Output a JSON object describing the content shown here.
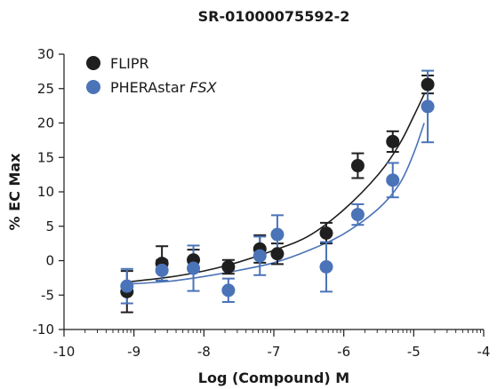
{
  "colors": {
    "flipr": "#1f1f1f",
    "pherastar": "#4a73b8"
  },
  "chart_data": {
    "type": "scatter",
    "title": "SR-01000075592-2",
    "xlabel": "Log (Compound) M",
    "ylabel": "% EC Max",
    "xlim": [
      -10,
      -4
    ],
    "ylim": [
      -10,
      30
    ],
    "x_ticks": [
      -10,
      -9,
      -8,
      -7,
      -6,
      -5,
      -4
    ],
    "y_ticks": [
      -10,
      -5,
      0,
      5,
      10,
      15,
      20,
      25,
      30
    ],
    "legend_placement": "top-left",
    "grid": false,
    "series": [
      {
        "name": "FLIPR",
        "legend_main": "FLIPR",
        "legend_italic": "",
        "color": "#1f1f1f",
        "x": [
          -9.1,
          -8.6,
          -8.15,
          -7.65,
          -7.2,
          -6.95,
          -6.25,
          -5.8,
          -5.3,
          -4.8
        ],
        "y": [
          -4.5,
          -0.4,
          0.1,
          -0.9,
          1.7,
          1.0,
          4.0,
          13.8,
          17.3,
          25.6
        ],
        "err": [
          3.0,
          2.5,
          1.5,
          1.0,
          2.0,
          1.5,
          1.5,
          1.8,
          1.5,
          1.3
        ],
        "curve_x": [
          -9.1,
          -8.5,
          -8.0,
          -7.5,
          -7.0,
          -6.5,
          -6.0,
          -5.5,
          -5.2,
          -5.0,
          -4.85
        ],
        "curve_y": [
          -3.1,
          -2.4,
          -1.5,
          -0.2,
          1.5,
          3.6,
          7.4,
          12.6,
          17.0,
          21.0,
          24.2
        ]
      },
      {
        "name": "PHERAstar FSX",
        "legend_main": "PHERAstar ",
        "legend_italic": "FSX",
        "color": "#4a73b8",
        "x": [
          -9.1,
          -8.6,
          -8.15,
          -7.65,
          -7.2,
          -6.95,
          -6.25,
          -5.8,
          -5.3,
          -4.8
        ],
        "y": [
          -3.7,
          -1.4,
          -1.1,
          -4.3,
          0.7,
          3.8,
          -0.9,
          6.7,
          11.7,
          22.4
        ],
        "err": [
          2.5,
          1.5,
          3.3,
          1.7,
          2.8,
          2.8,
          3.6,
          1.5,
          2.5,
          5.2
        ],
        "curve_x": [
          -9.1,
          -8.5,
          -8.0,
          -7.5,
          -7.0,
          -6.5,
          -6.0,
          -5.5,
          -5.2,
          -5.0,
          -4.85
        ],
        "curve_y": [
          -3.4,
          -3.0,
          -2.3,
          -1.4,
          -0.3,
          1.5,
          3.9,
          7.6,
          11.2,
          15.6,
          20.0
        ]
      }
    ]
  }
}
